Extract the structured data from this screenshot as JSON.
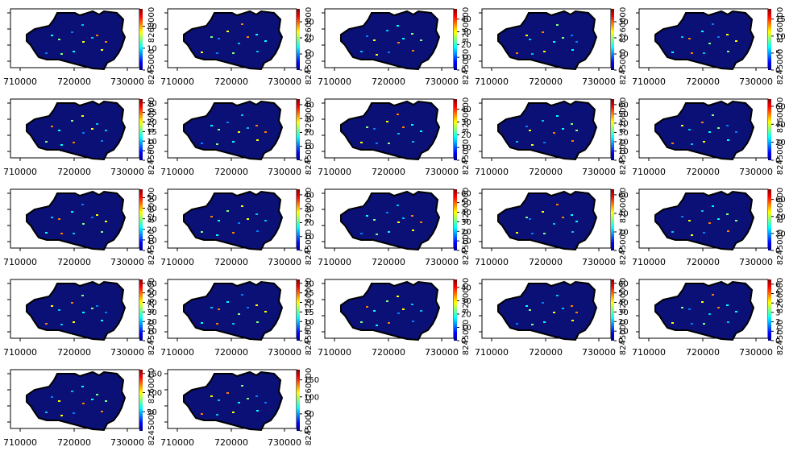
{
  "chart_data": {
    "type": "heatmap",
    "layout": {
      "rows": 5,
      "cols": 5,
      "panel_count": 22
    },
    "x_ticks": [
      "710000",
      "720000",
      "730000"
    ],
    "y_ticks_upper": [
      "8260000"
    ],
    "y_ticks_lower": [
      "8245000"
    ],
    "colormap": [
      "#00007f",
      "#0000ff",
      "#0080ff",
      "#00ffff",
      "#80ff80",
      "#ffff00",
      "#ff8000",
      "#ff0000",
      "#7f0000"
    ],
    "background_color": "#ffffff",
    "panels": [
      {
        "colorbar_ticks": [
          "0",
          "10",
          "20"
        ],
        "colorbar_max": 28
      },
      {
        "colorbar_ticks": [
          "0",
          "10",
          "20",
          "30"
        ],
        "colorbar_max": 38
      },
      {
        "colorbar_ticks": [
          "0",
          "10",
          "20",
          "30",
          "40"
        ],
        "colorbar_max": 48
      },
      {
        "colorbar_ticks": [
          "0",
          "10",
          "20",
          "30"
        ],
        "colorbar_max": 38
      },
      {
        "colorbar_ticks": [
          "0",
          "5",
          "10",
          "15"
        ],
        "colorbar_max": 18
      },
      {
        "colorbar_ticks": [
          "0",
          "5",
          "10",
          "15",
          "20",
          "25",
          "30"
        ],
        "colorbar_max": 32
      },
      {
        "colorbar_ticks": [
          "0",
          "10",
          "20",
          "30",
          "40"
        ],
        "colorbar_max": 44
      },
      {
        "colorbar_ticks": [
          "0",
          "10",
          "20",
          "30",
          "40"
        ],
        "colorbar_max": 48
      },
      {
        "colorbar_ticks": [
          "0",
          "10",
          "20",
          "30",
          "40",
          "50",
          "60"
        ],
        "colorbar_max": 66
      },
      {
        "colorbar_ticks": [
          "0",
          "20",
          "40",
          "60"
        ],
        "colorbar_max": 68
      },
      {
        "colorbar_ticks": [
          "0",
          "10",
          "20",
          "30",
          "40",
          "50"
        ],
        "colorbar_max": 58
      },
      {
        "colorbar_ticks": [
          "0",
          "10",
          "20",
          "30",
          "40"
        ],
        "colorbar_max": 44
      },
      {
        "colorbar_ticks": [
          "0",
          "10",
          "20",
          "30",
          "40",
          "50",
          "60"
        ],
        "colorbar_max": 64
      },
      {
        "colorbar_ticks": [
          "0",
          "20",
          "40",
          "60"
        ],
        "colorbar_max": 66
      },
      {
        "colorbar_ticks": [
          "0",
          "20",
          "40",
          "60"
        ],
        "colorbar_max": 72
      },
      {
        "colorbar_ticks": [
          "0",
          "10",
          "20",
          "30",
          "40",
          "50",
          "60"
        ],
        "colorbar_max": 64
      },
      {
        "colorbar_ticks": [
          "0",
          "5",
          "10",
          "15",
          "20",
          "25",
          "30"
        ],
        "colorbar_max": 32
      },
      {
        "colorbar_ticks": [
          "0",
          "10",
          "20",
          "30",
          "40"
        ],
        "colorbar_max": 46
      },
      {
        "colorbar_ticks": [
          "0",
          "10",
          "20",
          "30",
          "40",
          "50",
          "60"
        ],
        "colorbar_max": 64
      },
      {
        "colorbar_ticks": [
          "0",
          "1",
          "2",
          "3",
          "4",
          "5",
          "6"
        ],
        "colorbar_max": 6.5
      },
      {
        "colorbar_ticks": [
          "50",
          "100",
          "150"
        ],
        "colorbar_max": 160
      },
      {
        "colorbar_ticks": [
          "0",
          "50",
          "100",
          "150"
        ],
        "colorbar_max": 180
      }
    ]
  }
}
